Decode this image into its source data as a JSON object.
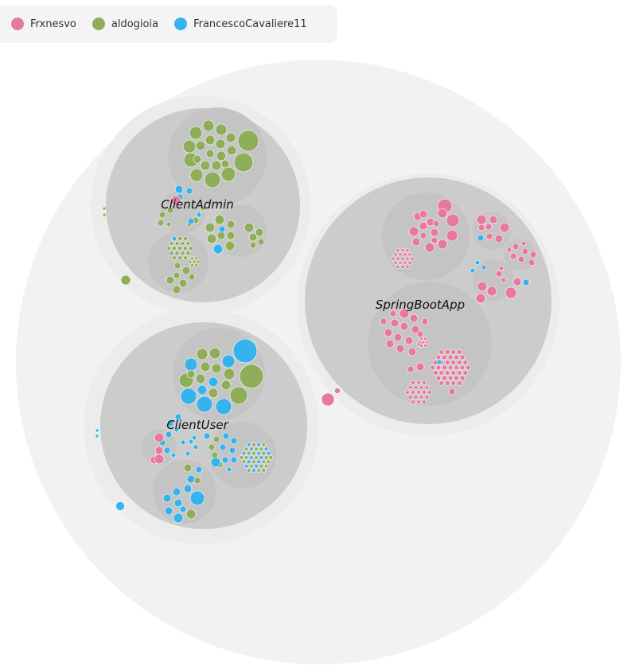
{
  "legend": {
    "items": [
      {
        "label": "Frxnesvo",
        "color": "#e8799e"
      },
      {
        "label": "aldogioia",
        "color": "#8fae5a"
      },
      {
        "label": "FrancescoCavaliere11",
        "color": "#36b3ec"
      }
    ]
  },
  "clusters": {
    "client_admin": {
      "label": "ClientAdmin"
    },
    "spring_boot_app": {
      "label": "SpringBootApp"
    },
    "client_user": {
      "label": "ClientUser"
    }
  },
  "colors": {
    "Frxnesvo": "#e8799e",
    "aldogioia": "#8fae5a",
    "FrancescoCavaliere11": "#36b3ec",
    "root_bg": "#f2f2f2",
    "module_bg": "#cccccc",
    "package_bg": "#c3c3c3"
  }
}
